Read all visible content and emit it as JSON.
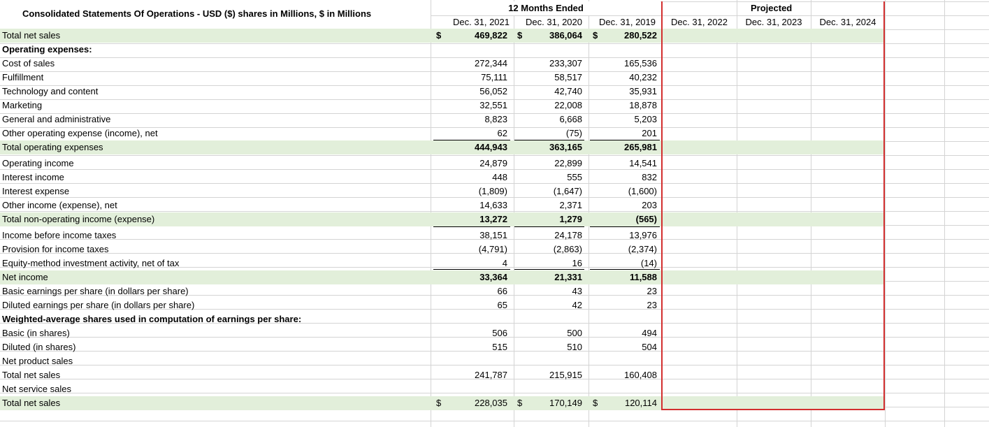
{
  "header": {
    "title": "Consolidated Statements Of Operations - USD ($) shares in Millions, $ in Millions",
    "period_group": "12 Months Ended",
    "projected_group": "Projected",
    "columns": [
      "Dec. 31, 2021",
      "Dec. 31, 2020",
      "Dec. 31, 2019",
      "Dec. 31, 2022",
      "Dec. 31, 2023",
      "Dec. 31, 2024"
    ]
  },
  "currency_symbol": "$",
  "rows": [
    {
      "label": "Total net sales",
      "values": [
        "469,822",
        "386,064",
        "280,522"
      ],
      "shaded": true,
      "bold_values": true,
      "dollar": true
    },
    {
      "label": "Operating expenses:",
      "values": [
        "",
        "",
        ""
      ],
      "bold_label": true
    },
    {
      "label": "Cost of sales",
      "values": [
        "272,344",
        "233,307",
        "165,536"
      ]
    },
    {
      "label": "Fulfillment",
      "values": [
        "75,111",
        "58,517",
        "40,232"
      ]
    },
    {
      "label": "Technology and content",
      "values": [
        "56,052",
        "42,740",
        "35,931"
      ]
    },
    {
      "label": "Marketing",
      "values": [
        "32,551",
        "22,008",
        "18,878"
      ]
    },
    {
      "label": "General and administrative",
      "values": [
        "8,823",
        "6,668",
        "5,203"
      ]
    },
    {
      "label": "Other operating expense (income), net",
      "values": [
        "62",
        "(75)",
        "201"
      ]
    },
    {
      "label": "Total operating expenses",
      "values": [
        "444,943",
        "363,165",
        "265,981"
      ],
      "shaded": true,
      "bold_values": true
    },
    {
      "label": "Operating income",
      "values": [
        "24,879",
        "22,899",
        "14,541"
      ]
    },
    {
      "label": "Interest income",
      "values": [
        "448",
        "555",
        "832"
      ]
    },
    {
      "label": "Interest expense",
      "values": [
        "(1,809)",
        "(1,647)",
        "(1,600)"
      ]
    },
    {
      "label": "Other income (expense), net",
      "values": [
        "14,633",
        "2,371",
        "203"
      ]
    },
    {
      "label": "Total non-operating income (expense)",
      "values": [
        "13,272",
        "1,279",
        "(565)"
      ],
      "shaded": true,
      "bold_values": true
    },
    {
      "label": "Income before income taxes",
      "values": [
        "38,151",
        "24,178",
        "13,976"
      ]
    },
    {
      "label": "Provision for income taxes",
      "values": [
        "(4,791)",
        "(2,863)",
        "(2,374)"
      ]
    },
    {
      "label": "Equity-method investment activity, net of tax",
      "values": [
        "4",
        "16",
        "(14)"
      ]
    },
    {
      "label": "Net income",
      "values": [
        "33,364",
        "21,331",
        "11,588"
      ],
      "shaded": true,
      "bold_values": true
    },
    {
      "label": "Basic earnings per share (in dollars per share)",
      "values": [
        "66",
        "43",
        "23"
      ]
    },
    {
      "label": "Diluted earnings per share (in dollars per share)",
      "values": [
        "65",
        "42",
        "23"
      ]
    },
    {
      "label": "Weighted-average shares used in computation of earnings per share:",
      "values": [
        "",
        "",
        ""
      ],
      "bold_label": true
    },
    {
      "label": "Basic (in shares)",
      "values": [
        "506",
        "500",
        "494"
      ]
    },
    {
      "label": "Diluted (in shares)",
      "values": [
        "515",
        "510",
        "504"
      ]
    },
    {
      "label": "Net product sales",
      "values": [
        "",
        "",
        ""
      ]
    },
    {
      "label": "Total net sales",
      "values": [
        "241,787",
        "215,915",
        "160,408"
      ]
    },
    {
      "label": "Net service sales",
      "values": [
        "",
        "",
        ""
      ]
    },
    {
      "label": "Total net sales",
      "values": [
        "228,035",
        "170,149",
        "120,114"
      ],
      "shaded": true,
      "dollar": true
    }
  ]
}
